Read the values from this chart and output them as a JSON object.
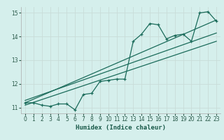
{
  "title": "",
  "xlabel": "Humidex (Indice chaleur)",
  "bg_color": "#d5efec",
  "grid_color": "#c8dcd8",
  "line_color": "#1a6b5a",
  "xlim": [
    -0.5,
    23.5
  ],
  "ylim": [
    10.75,
    15.25
  ],
  "xticks": [
    0,
    1,
    2,
    3,
    4,
    5,
    6,
    7,
    8,
    9,
    10,
    11,
    12,
    13,
    14,
    15,
    16,
    17,
    18,
    19,
    20,
    21,
    22,
    23
  ],
  "yticks": [
    11,
    12,
    13,
    14,
    15
  ],
  "data_line": {
    "x": [
      0,
      1,
      2,
      3,
      4,
      5,
      6,
      7,
      8,
      9,
      10,
      11,
      12,
      13,
      14,
      15,
      16,
      17,
      18,
      19,
      20,
      21,
      22,
      23
    ],
    "y": [
      11.2,
      11.2,
      11.1,
      11.05,
      11.15,
      11.15,
      10.9,
      11.55,
      11.6,
      12.1,
      12.15,
      12.2,
      12.2,
      13.8,
      14.1,
      14.55,
      14.5,
      13.9,
      14.05,
      14.1,
      13.8,
      15.0,
      15.05,
      14.65
    ]
  },
  "line2": {
    "x": [
      0,
      23
    ],
    "y": [
      11.2,
      14.7
    ]
  },
  "line3": {
    "x": [
      0,
      23
    ],
    "y": [
      11.3,
      14.15
    ]
  },
  "line4": {
    "x": [
      0,
      23
    ],
    "y": [
      11.1,
      13.8
    ]
  }
}
